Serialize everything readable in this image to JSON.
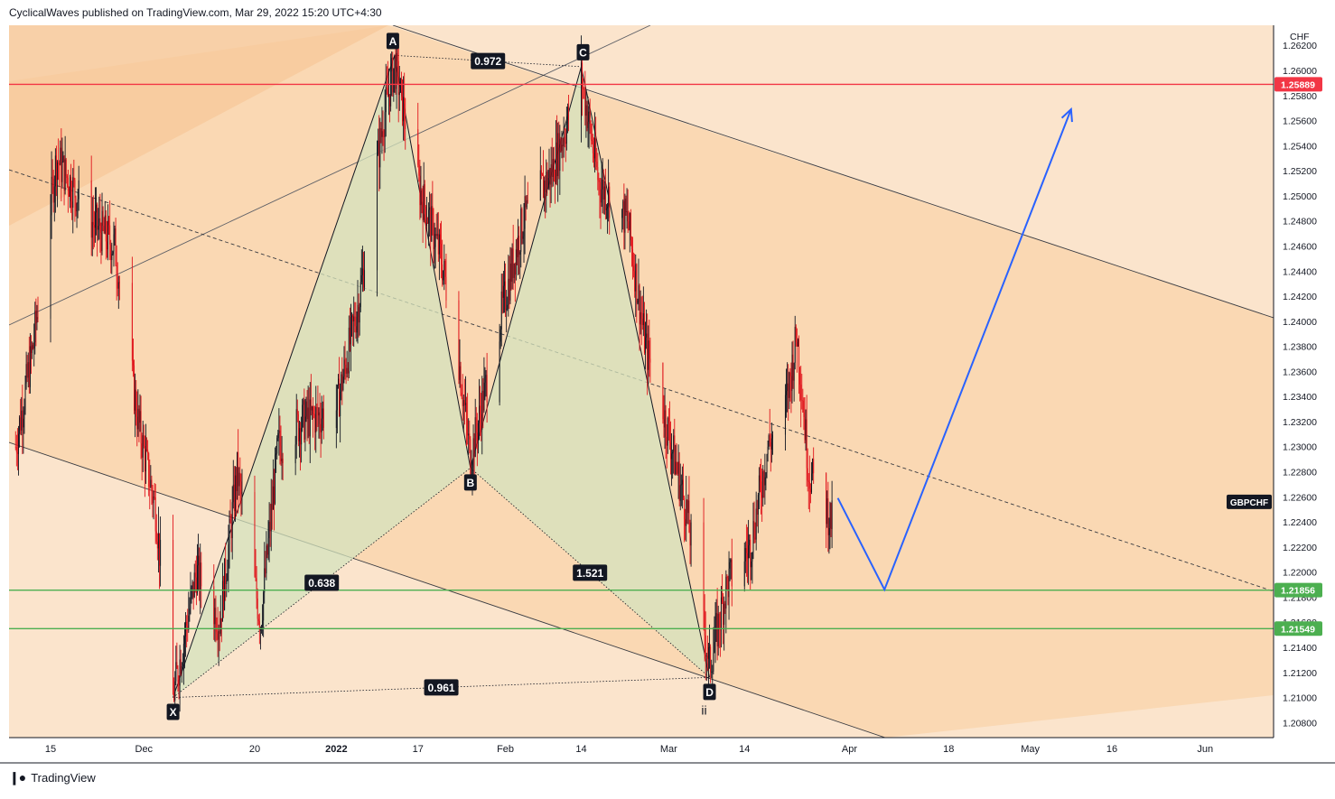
{
  "header": {
    "published": "CyclicalWaves published on TradingView.com, Mar 29, 2022 15:20 UTC+4:30"
  },
  "footer": {
    "brand": "TradingView",
    "logo_icon": "tradingview-logo-icon"
  },
  "colors": {
    "bg_light": "#fbe4cc",
    "bg_mid": "#fad8b3",
    "bg_dark": "#f6c898",
    "candle_up": "#131722",
    "candle_down": "#e0151c",
    "resistance": "#f23645",
    "support": "#4caf50",
    "projection": "#2962ff",
    "harmonic_fill": "#d4e3bd"
  },
  "chart_data": {
    "type": "candlestick",
    "symbol": "GBPCHF",
    "currency": "CHF",
    "y_axis": {
      "ticks": [
        "1.20800",
        "1.21000",
        "1.21200",
        "1.21400",
        "1.21600",
        "1.21800",
        "1.22000",
        "1.22200",
        "1.22400",
        "1.22600",
        "1.22800",
        "1.23000",
        "1.23200",
        "1.23400",
        "1.23600",
        "1.23800",
        "1.24000",
        "1.24200",
        "1.24400",
        "1.24600",
        "1.24800",
        "1.25000",
        "1.25200",
        "1.25400",
        "1.25600",
        "1.25800",
        "1.26000",
        "1.26200"
      ],
      "range": [
        1.2068,
        1.2636
      ]
    },
    "x_axis": {
      "labels": [
        {
          "text": "15",
          "date": "2021-11-15"
        },
        {
          "text": "Dec",
          "date": "2021-12-01"
        },
        {
          "text": "20",
          "date": "2021-12-20"
        },
        {
          "text": "2022",
          "date": "2022-01-03"
        },
        {
          "text": "17",
          "date": "2022-01-17"
        },
        {
          "text": "Feb",
          "date": "2022-02-01"
        },
        {
          "text": "14",
          "date": "2022-02-14"
        },
        {
          "text": "Mar",
          "date": "2022-03-01"
        },
        {
          "text": "14",
          "date": "2022-03-14"
        },
        {
          "text": "Apr",
          "date": "2022-04-01"
        },
        {
          "text": "18",
          "date": "2022-04-18"
        },
        {
          "text": "May",
          "date": "2022-05-02"
        },
        {
          "text": "16",
          "date": "2022-05-16"
        },
        {
          "text": "Jun",
          "date": "2022-06-01"
        }
      ]
    },
    "horizontal_levels": [
      {
        "price": 1.25889,
        "label": "1.25889",
        "kind": "resistance"
      },
      {
        "price": 1.21856,
        "label": "1.21856",
        "kind": "support"
      },
      {
        "price": 1.21549,
        "label": "1.21549",
        "kind": "support"
      }
    ],
    "last_price_tag": {
      "label": "GBPCHF",
      "price": 1.2256
    },
    "harmonic_pattern": {
      "points": [
        {
          "name": "X",
          "date": "2021-12-06",
          "price": 1.21
        },
        {
          "name": "A",
          "date": "2022-01-13",
          "price": 1.2612
        },
        {
          "name": "B",
          "date": "2022-01-26",
          "price": 1.2283
        },
        {
          "name": "C",
          "date": "2022-02-14",
          "price": 1.2603
        },
        {
          "name": "D",
          "date": "2022-03-08",
          "price": 1.2116
        }
      ],
      "ratios": [
        {
          "label": "0.972",
          "between": "A-C"
        },
        {
          "label": "0.638",
          "between": "X-B"
        },
        {
          "label": "1.521",
          "between": "B-D"
        },
        {
          "label": "0.961",
          "between": "X-D"
        }
      ],
      "wave_label": "ii"
    },
    "projection_path": [
      {
        "date": "2022-03-30",
        "price": 1.2259
      },
      {
        "date": "2022-04-07",
        "price": 1.2186
      },
      {
        "date": "2022-05-09",
        "price": 1.2569
      }
    ],
    "price_series": {
      "start_date": "2021-11-09",
      "end_date": "2022-03-29",
      "anchors": [
        {
          "date": "2021-11-09",
          "price": 1.23
        },
        {
          "date": "2021-11-12",
          "price": 1.238
        },
        {
          "date": "2021-11-16",
          "price": 1.253
        },
        {
          "date": "2021-11-22",
          "price": 1.248
        },
        {
          "date": "2021-11-26",
          "price": 1.246
        },
        {
          "date": "2021-11-30",
          "price": 1.232
        },
        {
          "date": "2021-12-03",
          "price": 1.225
        },
        {
          "date": "2021-12-06",
          "price": 1.21
        },
        {
          "date": "2021-12-10",
          "price": 1.22
        },
        {
          "date": "2021-12-14",
          "price": 1.216
        },
        {
          "date": "2021-12-17",
          "price": 1.228
        },
        {
          "date": "2021-12-21",
          "price": 1.216
        },
        {
          "date": "2021-12-24",
          "price": 1.23
        },
        {
          "date": "2021-12-28",
          "price": 1.232
        },
        {
          "date": "2022-01-03",
          "price": 1.233
        },
        {
          "date": "2022-01-07",
          "price": 1.242
        },
        {
          "date": "2022-01-11",
          "price": 1.256
        },
        {
          "date": "2022-01-13",
          "price": 1.2605
        },
        {
          "date": "2022-01-17",
          "price": 1.251
        },
        {
          "date": "2022-01-21",
          "price": 1.245
        },
        {
          "date": "2022-01-24",
          "price": 1.237
        },
        {
          "date": "2022-01-26",
          "price": 1.229
        },
        {
          "date": "2022-01-31",
          "price": 1.24
        },
        {
          "date": "2022-02-04",
          "price": 1.248
        },
        {
          "date": "2022-02-09",
          "price": 1.252
        },
        {
          "date": "2022-02-14",
          "price": 1.2595
        },
        {
          "date": "2022-02-17",
          "price": 1.251
        },
        {
          "date": "2022-02-22",
          "price": 1.248
        },
        {
          "date": "2022-02-25",
          "price": 1.238
        },
        {
          "date": "2022-02-28",
          "price": 1.233
        },
        {
          "date": "2022-03-04",
          "price": 1.225
        },
        {
          "date": "2022-03-08",
          "price": 1.2125
        },
        {
          "date": "2022-03-11",
          "price": 1.219
        },
        {
          "date": "2022-03-15",
          "price": 1.222
        },
        {
          "date": "2022-03-18",
          "price": 1.23
        },
        {
          "date": "2022-03-21",
          "price": 1.233
        },
        {
          "date": "2022-03-23",
          "price": 1.239
        },
        {
          "date": "2022-03-25",
          "price": 1.228
        },
        {
          "date": "2022-03-29",
          "price": 1.224
        }
      ]
    },
    "grid": false,
    "legend": "none"
  }
}
